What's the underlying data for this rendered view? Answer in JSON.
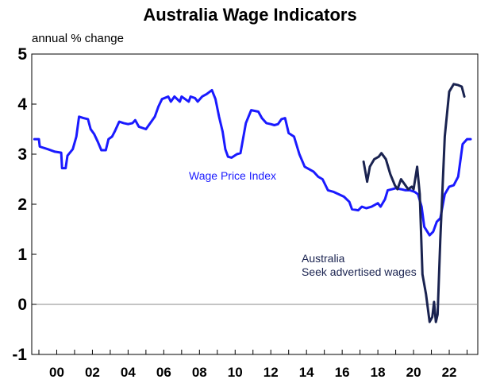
{
  "chart_data": {
    "type": "line",
    "title": "Australia Wage Indicators",
    "ylabel": "annual % change",
    "xlabel": "",
    "xlim": [
      1998.6,
      2023.6
    ],
    "ylim": [
      -1,
      5
    ],
    "yticks": [
      5,
      4,
      3,
      2,
      1,
      0,
      -1
    ],
    "xticks": [
      {
        "label": "00",
        "x": 2000
      },
      {
        "label": "02",
        "x": 2002
      },
      {
        "label": "04",
        "x": 2004
      },
      {
        "label": "06",
        "x": 2006
      },
      {
        "label": "08",
        "x": 2008
      },
      {
        "label": "10",
        "x": 2010
      },
      {
        "label": "12",
        "x": 2012
      },
      {
        "label": "14",
        "x": 2014
      },
      {
        "label": "16",
        "x": 2016
      },
      {
        "label": "18",
        "x": 2018
      },
      {
        "label": "20",
        "x": 2020
      },
      {
        "label": "22",
        "x": 2022
      }
    ],
    "grid": false,
    "zero_line": true,
    "series": [
      {
        "name": "Wage Price Index",
        "color": "#1a1aff",
        "label_lines": [
          "Wage Price Index"
        ],
        "points": [
          [
            1998.75,
            3.3
          ],
          [
            1999.0,
            3.3
          ],
          [
            1999.05,
            3.15
          ],
          [
            1999.5,
            3.1
          ],
          [
            1999.9,
            3.05
          ],
          [
            2000.25,
            3.03
          ],
          [
            2000.3,
            2.72
          ],
          [
            2000.5,
            2.72
          ],
          [
            2000.6,
            2.97
          ],
          [
            2000.9,
            3.1
          ],
          [
            2001.1,
            3.35
          ],
          [
            2001.25,
            3.75
          ],
          [
            2001.5,
            3.72
          ],
          [
            2001.75,
            3.7
          ],
          [
            2001.9,
            3.5
          ],
          [
            2002.1,
            3.4
          ],
          [
            2002.3,
            3.25
          ],
          [
            2002.5,
            3.08
          ],
          [
            2002.75,
            3.08
          ],
          [
            2002.9,
            3.3
          ],
          [
            2003.1,
            3.35
          ],
          [
            2003.25,
            3.45
          ],
          [
            2003.5,
            3.65
          ],
          [
            2003.75,
            3.62
          ],
          [
            2004.0,
            3.6
          ],
          [
            2004.25,
            3.62
          ],
          [
            2004.4,
            3.68
          ],
          [
            2004.6,
            3.55
          ],
          [
            2005.0,
            3.5
          ],
          [
            2005.3,
            3.65
          ],
          [
            2005.5,
            3.75
          ],
          [
            2005.7,
            3.95
          ],
          [
            2005.9,
            4.1
          ],
          [
            2006.25,
            4.15
          ],
          [
            2006.4,
            4.05
          ],
          [
            2006.6,
            4.15
          ],
          [
            2006.9,
            4.05
          ],
          [
            2007.0,
            4.15
          ],
          [
            2007.2,
            4.1
          ],
          [
            2007.4,
            4.05
          ],
          [
            2007.5,
            4.15
          ],
          [
            2007.75,
            4.12
          ],
          [
            2007.9,
            4.05
          ],
          [
            2008.15,
            4.15
          ],
          [
            2008.4,
            4.2
          ],
          [
            2008.7,
            4.28
          ],
          [
            2008.9,
            4.1
          ],
          [
            2009.1,
            3.75
          ],
          [
            2009.3,
            3.45
          ],
          [
            2009.45,
            3.1
          ],
          [
            2009.6,
            2.95
          ],
          [
            2009.8,
            2.93
          ],
          [
            2010.1,
            3.0
          ],
          [
            2010.3,
            3.02
          ],
          [
            2010.6,
            3.62
          ],
          [
            2010.9,
            3.88
          ],
          [
            2011.3,
            3.85
          ],
          [
            2011.5,
            3.72
          ],
          [
            2011.75,
            3.62
          ],
          [
            2012.0,
            3.6
          ],
          [
            2012.2,
            3.58
          ],
          [
            2012.4,
            3.6
          ],
          [
            2012.6,
            3.7
          ],
          [
            2012.8,
            3.72
          ],
          [
            2013.0,
            3.42
          ],
          [
            2013.3,
            3.35
          ],
          [
            2013.6,
            3.0
          ],
          [
            2013.9,
            2.75
          ],
          [
            2014.15,
            2.7
          ],
          [
            2014.4,
            2.65
          ],
          [
            2014.65,
            2.55
          ],
          [
            2014.9,
            2.5
          ],
          [
            2015.2,
            2.28
          ],
          [
            2015.5,
            2.25
          ],
          [
            2015.8,
            2.2
          ],
          [
            2016.1,
            2.15
          ],
          [
            2016.4,
            2.05
          ],
          [
            2016.55,
            1.9
          ],
          [
            2016.9,
            1.88
          ],
          [
            2017.1,
            1.95
          ],
          [
            2017.35,
            1.92
          ],
          [
            2017.65,
            1.95
          ],
          [
            2018.0,
            2.02
          ],
          [
            2018.15,
            1.95
          ],
          [
            2018.4,
            2.1
          ],
          [
            2018.55,
            2.28
          ],
          [
            2018.8,
            2.3
          ],
          [
            2019.0,
            2.32
          ],
          [
            2019.3,
            2.3
          ],
          [
            2019.55,
            2.28
          ],
          [
            2019.8,
            2.28
          ],
          [
            2020.05,
            2.25
          ],
          [
            2020.25,
            2.2
          ],
          [
            2020.45,
            1.95
          ],
          [
            2020.6,
            1.55
          ],
          [
            2020.9,
            1.38
          ],
          [
            2021.1,
            1.45
          ],
          [
            2021.3,
            1.65
          ],
          [
            2021.5,
            1.72
          ],
          [
            2021.75,
            2.2
          ],
          [
            2022.0,
            2.35
          ],
          [
            2022.25,
            2.38
          ],
          [
            2022.5,
            2.55
          ],
          [
            2022.75,
            3.2
          ],
          [
            2023.0,
            3.3
          ],
          [
            2023.2,
            3.3
          ]
        ]
      },
      {
        "name": "Australia Seek advertised wages",
        "color": "#1a2350",
        "label_lines": [
          "Australia",
          "Seek advertised wages"
        ],
        "points": [
          [
            2017.2,
            2.85
          ],
          [
            2017.4,
            2.45
          ],
          [
            2017.55,
            2.75
          ],
          [
            2017.8,
            2.9
          ],
          [
            2018.05,
            2.95
          ],
          [
            2018.2,
            3.02
          ],
          [
            2018.45,
            2.9
          ],
          [
            2018.7,
            2.6
          ],
          [
            2018.95,
            2.38
          ],
          [
            2019.1,
            2.3
          ],
          [
            2019.3,
            2.5
          ],
          [
            2019.5,
            2.4
          ],
          [
            2019.7,
            2.3
          ],
          [
            2019.9,
            2.35
          ],
          [
            2020.0,
            2.3
          ],
          [
            2020.2,
            2.75
          ],
          [
            2020.35,
            2.2
          ],
          [
            2020.5,
            0.6
          ],
          [
            2020.7,
            0.2
          ],
          [
            2020.9,
            -0.35
          ],
          [
            2021.05,
            -0.25
          ],
          [
            2021.15,
            0.05
          ],
          [
            2021.25,
            -0.35
          ],
          [
            2021.35,
            -0.2
          ],
          [
            2021.5,
            1.3
          ],
          [
            2021.75,
            3.35
          ],
          [
            2022.0,
            4.25
          ],
          [
            2022.25,
            4.4
          ],
          [
            2022.5,
            4.38
          ],
          [
            2022.7,
            4.35
          ],
          [
            2022.85,
            4.15
          ]
        ]
      }
    ]
  }
}
